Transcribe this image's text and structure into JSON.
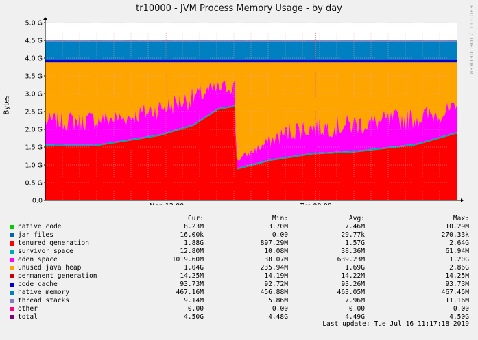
{
  "title": "tr10000 - JVM Process Memory Usage - by day",
  "side_label": "RRDTOOL / TOBI OETIKER",
  "chart_data": {
    "type": "area",
    "title": "tr10000 - JVM Process Memory Usage - by day",
    "ylabel": "Bytes",
    "ylim": [
      0,
      5.0
    ],
    "yunit": "G",
    "yticks": [
      "0.0",
      "0.5 G",
      "1.0 G",
      "1.5 G",
      "2.0 G",
      "2.5 G",
      "3.0 G",
      "3.5 G",
      "4.0 G",
      "4.5 G",
      "5.0 G"
    ],
    "xticks": [
      {
        "label": "Mon 12:00",
        "frac": 0.295
      },
      {
        "label": "Tue 00:00",
        "frac": 0.6575
      }
    ],
    "grid": true,
    "approx_series_G": {
      "tenured_generation": {
        "color": "#ff0000",
        "points": [
          [
            0,
            1.53
          ],
          [
            0.12,
            1.52
          ],
          [
            0.28,
            1.82
          ],
          [
            0.36,
            2.1
          ],
          [
            0.42,
            2.55
          ],
          [
            0.46,
            2.63
          ],
          [
            0.465,
            0.87
          ],
          [
            0.55,
            1.12
          ],
          [
            0.65,
            1.3
          ],
          [
            0.75,
            1.35
          ],
          [
            0.9,
            1.55
          ],
          [
            1.0,
            1.88
          ]
        ]
      },
      "eden_space_peak_top": {
        "color": "#ff00ff",
        "points": [
          [
            0,
            2.5
          ],
          [
            0.2,
            2.6
          ],
          [
            0.38,
            3.3
          ],
          [
            0.46,
            3.45
          ],
          [
            0.465,
            1.2
          ],
          [
            0.6,
            2.3
          ],
          [
            0.8,
            2.5
          ],
          [
            1.0,
            2.8
          ]
        ]
      },
      "unused_java_heap_top": 3.88,
      "code_cache_top": 3.97,
      "native_memory_top": 4.47,
      "total": 4.5
    },
    "columns": [
      "Cur:",
      "Min:",
      "Avg:",
      "Max:"
    ],
    "legend": [
      {
        "name": "native code",
        "color": "#00cc00",
        "cur": "8.23M",
        "min": "3.70M",
        "avg": "7.46M",
        "max": "10.29M"
      },
      {
        "name": "jar files",
        "color": "#0066b3",
        "cur": "16.00k",
        "min": "0.00",
        "avg": "29.77k",
        "max": "270.33k"
      },
      {
        "name": "tenured generation",
        "color": "#ff0000",
        "cur": "1.88G",
        "min": "897.29M",
        "avg": "1.57G",
        "max": "2.64G"
      },
      {
        "name": "survivor space",
        "color": "#00aaaa",
        "cur": "12.80M",
        "min": "10.08M",
        "avg": "38.36M",
        "max": "61.94M"
      },
      {
        "name": "eden space",
        "color": "#ff00ff",
        "cur": "1019.60M",
        "min": "38.07M",
        "avg": "639.23M",
        "max": "1.20G"
      },
      {
        "name": "unused java heap",
        "color": "#ffa500",
        "cur": "1.04G",
        "min": "235.94M",
        "avg": "1.69G",
        "max": "2.86G"
      },
      {
        "name": "permanent generation",
        "color": "#cc0000",
        "cur": "14.25M",
        "min": "14.19M",
        "avg": "14.22M",
        "max": "14.25M"
      },
      {
        "name": "code cache",
        "color": "#0000cc",
        "cur": "93.73M",
        "min": "92.72M",
        "avg": "93.26M",
        "max": "93.73M"
      },
      {
        "name": "native memory",
        "color": "#0080c0",
        "cur": "467.16M",
        "min": "456.88M",
        "avg": "463.05M",
        "max": "467.45M"
      },
      {
        "name": "thread stacks",
        "color": "#8080c0",
        "cur": "9.14M",
        "min": "5.86M",
        "avg": "7.96M",
        "max": "11.16M"
      },
      {
        "name": "other",
        "color": "#ff0080",
        "cur": "0.00",
        "min": "0.00",
        "avg": "0.00",
        "max": "0.00"
      },
      {
        "name": "total",
        "color": "#800080",
        "cur": "4.50G",
        "min": "4.48G",
        "avg": "4.49G",
        "max": "4.50G"
      }
    ]
  },
  "last_update": "Last update:  Tue Jul 16 11:17:18 2019"
}
